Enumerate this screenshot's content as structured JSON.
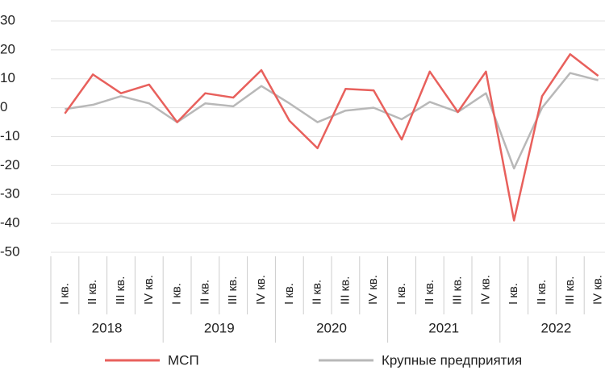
{
  "chart_data": {
    "type": "line",
    "categories": [
      "I кв.",
      "II кв.",
      "III кв.",
      "IV кв.",
      "I кв.",
      "II кв.",
      "III кв.",
      "IV кв.",
      "I кв.",
      "II кв.",
      "III кв.",
      "IV кв.",
      "I кв.",
      "II кв.",
      "III кв.",
      "IV кв.",
      "I кв.",
      "II кв.",
      "III кв.",
      "IV кв."
    ],
    "years": [
      "2018",
      "2019",
      "2020",
      "2021",
      "2022"
    ],
    "series": [
      {
        "name": "МСП",
        "color": "#e8605c",
        "values": [
          -2,
          11.5,
          5,
          8,
          -5,
          5,
          3.5,
          13,
          -4.5,
          -14,
          6.5,
          6,
          -11,
          12.5,
          -1.5,
          12.5,
          -39,
          4,
          18.5,
          11
        ]
      },
      {
        "name": "Крупные предприятия",
        "color": "#b8b8b8",
        "values": [
          -0.5,
          1,
          4,
          1.5,
          -5,
          1.5,
          0.5,
          7.5,
          1.5,
          -5,
          -1,
          0,
          -4,
          2,
          -1.5,
          5,
          -21,
          0,
          12,
          9.5
        ]
      }
    ],
    "ylim": [
      -50,
      30
    ],
    "yticks": [
      -50,
      -40,
      -30,
      -20,
      -10,
      0,
      10,
      20,
      30
    ],
    "grid": true
  }
}
